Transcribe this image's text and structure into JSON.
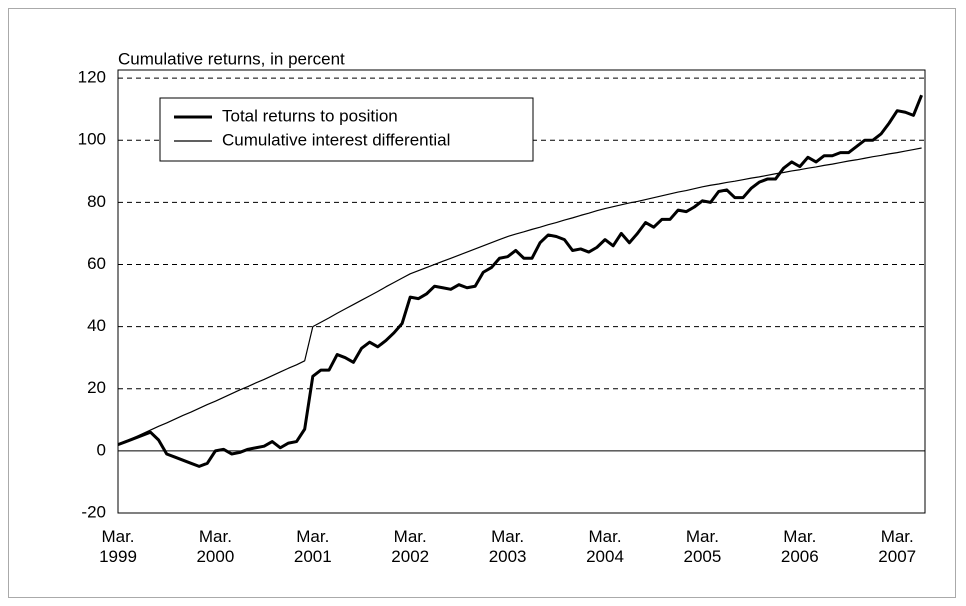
{
  "chart_data": {
    "type": "line",
    "y_label": "Cumulative returns, in percent",
    "categories": [
      "Mar.\n1999",
      null,
      null,
      null,
      null,
      null,
      null,
      null,
      null,
      null,
      null,
      null,
      "Mar.\n2000",
      null,
      null,
      null,
      null,
      null,
      null,
      null,
      null,
      null,
      null,
      null,
      "Mar.\n2001",
      null,
      null,
      null,
      null,
      null,
      null,
      null,
      null,
      null,
      null,
      null,
      "Mar.\n2002",
      null,
      null,
      null,
      null,
      null,
      null,
      null,
      null,
      null,
      null,
      null,
      "Mar.\n2003",
      null,
      null,
      null,
      null,
      null,
      null,
      null,
      null,
      null,
      null,
      null,
      "Mar.\n2004",
      null,
      null,
      null,
      null,
      null,
      null,
      null,
      null,
      null,
      null,
      null,
      "Mar.\n2005",
      null,
      null,
      null,
      null,
      null,
      null,
      null,
      null,
      null,
      null,
      null,
      "Mar.\n2006",
      null,
      null,
      null,
      null,
      null,
      null,
      null,
      null,
      null,
      null,
      null,
      "Mar.\n2007",
      null,
      null,
      null
    ],
    "series": [
      {
        "name": "Total returns to position",
        "color": "#000000",
        "width": 3,
        "values": [
          2,
          3,
          4,
          5,
          6,
          3.5,
          -1,
          -2,
          -3,
          -4,
          -5,
          -4,
          0,
          0.5,
          -1,
          -0.5,
          0.5,
          1,
          1.5,
          3,
          1,
          2.5,
          3,
          7,
          24,
          26,
          26,
          31,
          30,
          28.5,
          33,
          35,
          33.5,
          35.5,
          38,
          41,
          49.5,
          49,
          50.5,
          53,
          52.5,
          52,
          53.5,
          52.5,
          53,
          57.5,
          59,
          62,
          62.5,
          64.5,
          62,
          62,
          67,
          69.5,
          69,
          68,
          64.5,
          65,
          64,
          65.5,
          68,
          66,
          70,
          67,
          70,
          73.5,
          72,
          74.5,
          74.5,
          77.5,
          77,
          78.5,
          80.5,
          80,
          83.5,
          84,
          81.5,
          81.5,
          84.5,
          86.5,
          87.5,
          87.5,
          91,
          93,
          91.5,
          94.5,
          93,
          95,
          95,
          96,
          96,
          98,
          100,
          100,
          102,
          105.5,
          109.5,
          109,
          108,
          114.5
        ]
      },
      {
        "name": "Cumulative interest differential",
        "color": "#000000",
        "width": 1.2,
        "values": [
          2,
          3.2,
          4.3,
          5.5,
          6.7,
          7.9,
          9,
          10.2,
          11.4,
          12.5,
          13.7,
          14.9,
          16,
          17.2,
          18.4,
          19.6,
          20.7,
          21.9,
          23,
          24.2,
          25.4,
          26.6,
          27.7,
          29,
          40,
          41.4,
          42.8,
          44.3,
          45.7,
          47.1,
          48.5,
          49.9,
          51.3,
          52.8,
          54.2,
          55.6,
          57,
          58,
          59,
          60,
          61,
          62,
          63,
          64,
          65,
          66,
          67,
          68,
          69,
          69.8,
          70.5,
          71.3,
          72,
          72.8,
          73.5,
          74.3,
          75,
          75.8,
          76.5,
          77.3,
          78,
          78.6,
          79.2,
          79.8,
          80.3,
          80.9,
          81.5,
          82.1,
          82.7,
          83.3,
          83.8,
          84.4,
          85,
          85.5,
          85.9,
          86.4,
          86.8,
          87.3,
          87.8,
          88.2,
          88.7,
          89.2,
          89.6,
          90.1,
          90.5,
          91,
          91.4,
          91.9,
          92.3,
          92.8,
          93.3,
          93.7,
          94.2,
          94.7,
          95.1,
          95.6,
          96,
          96.5,
          97,
          97.5
        ]
      }
    ],
    "ylim": [
      -20,
      122.6
    ],
    "yticks": [
      -20,
      0,
      20,
      40,
      60,
      80,
      100,
      120
    ],
    "grid": true,
    "legend": "upper left"
  }
}
